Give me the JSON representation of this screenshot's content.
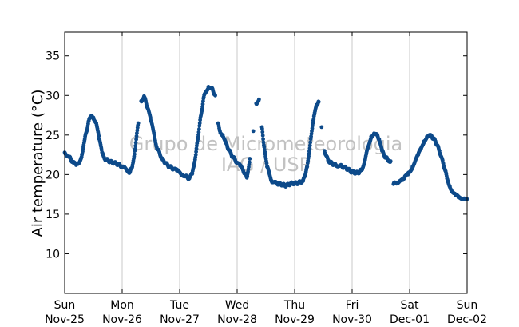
{
  "chart_data": {
    "type": "scatter",
    "ylabel": "Air temperature (°C)",
    "xlabel": "",
    "watermark": [
      "Grupo de Micrometeorologia",
      "IAG / USP"
    ],
    "ylim": [
      5,
      38
    ],
    "xlim": [
      0,
      7
    ],
    "yticks": [
      10,
      15,
      20,
      25,
      30,
      35
    ],
    "xticks": [
      {
        "day": "Sun",
        "date": "Nov-25",
        "x": 0
      },
      {
        "day": "Mon",
        "date": "Nov-26",
        "x": 1
      },
      {
        "day": "Tue",
        "date": "Nov-27",
        "x": 2
      },
      {
        "day": "Wed",
        "date": "Nov-28",
        "x": 3
      },
      {
        "day": "Thu",
        "date": "Nov-29",
        "x": 4
      },
      {
        "day": "Fri",
        "date": "Nov-30",
        "x": 5
      },
      {
        "day": "Sat",
        "date": "Dec-01",
        "x": 6
      },
      {
        "day": "Sun",
        "date": "Dec-02",
        "x": 7
      }
    ],
    "grid": "vertical",
    "marker_color": "#0d4a8a",
    "series": [
      {
        "x": [
          0.0,
          0.08,
          0.15,
          0.2,
          0.25,
          0.3,
          0.35,
          0.42,
          0.47,
          0.5,
          0.55,
          0.6,
          0.65,
          0.7,
          0.8,
          0.9,
          1.0,
          1.08,
          1.13,
          1.17,
          1.22,
          1.28,
          1.33,
          1.38,
          1.45,
          1.5,
          1.55,
          1.6,
          1.7,
          1.8,
          1.9,
          1.95,
          2.0,
          2.05,
          2.1,
          2.17,
          2.22,
          2.28,
          2.35,
          2.42,
          2.5,
          2.55,
          2.62,
          2.67,
          2.7,
          2.75,
          2.8,
          2.9,
          3.0,
          3.05,
          3.1,
          3.17,
          3.22,
          3.28,
          3.33,
          3.38,
          3.43,
          3.47,
          3.52,
          3.6,
          3.68,
          3.75,
          3.85,
          3.95,
          4.05,
          4.15,
          4.22,
          4.28,
          4.33,
          4.38,
          4.42,
          4.47,
          4.52,
          4.58,
          4.65,
          4.72,
          4.8,
          4.9,
          5.0,
          5.1,
          5.17,
          5.22,
          5.28,
          5.33,
          5.38,
          5.43,
          5.47,
          5.52,
          5.58,
          5.62,
          5.67,
          5.72,
          5.78,
          5.83,
          5.88,
          5.92,
          5.97,
          6.0,
          6.05,
          6.1,
          6.15,
          6.2,
          6.25,
          6.3,
          6.38,
          6.45,
          6.52,
          6.58,
          6.62,
          6.65,
          6.7,
          6.75,
          6.8,
          6.85,
          6.9,
          6.95,
          7.0
        ],
        "y": [
          22.8,
          22.2,
          21.5,
          21.2,
          21.5,
          22.5,
          24.5,
          26.8,
          27.4,
          27.2,
          26.5,
          24.5,
          22.8,
          22.0,
          21.6,
          21.4,
          21.0,
          20.6,
          20.3,
          20.8,
          23.0,
          26.5,
          29.3,
          29.9,
          28.3,
          26.8,
          25.3,
          23.5,
          21.9,
          21.1,
          20.7,
          20.5,
          20.3,
          20.0,
          19.8,
          19.5,
          20.1,
          22.5,
          26.5,
          29.8,
          31.1,
          31.0,
          30.0,
          26.5,
          25.5,
          25.0,
          24.0,
          22.5,
          21.5,
          21.1,
          20.6,
          19.6,
          22.0,
          25.5,
          29.0,
          29.5,
          26.0,
          23.5,
          21.0,
          19.2,
          18.9,
          18.8,
          18.6,
          18.9,
          18.9,
          19.2,
          21.0,
          24.5,
          27.0,
          28.8,
          29.2,
          26.0,
          23.0,
          21.8,
          21.4,
          21.2,
          21.1,
          20.8,
          20.3,
          20.2,
          20.6,
          21.8,
          23.5,
          24.8,
          25.2,
          25.0,
          24.5,
          23.0,
          22.2,
          21.9,
          21.7,
          18.8,
          19.0,
          19.2,
          19.3,
          19.8,
          20.0,
          20.3,
          21.0,
          21.8,
          22.5,
          23.3,
          24.2,
          24.8,
          24.9,
          24.2,
          23.0,
          21.5,
          20.5,
          19.5,
          18.5,
          17.8,
          17.4,
          17.1,
          17.0,
          17.0,
          16.9
        ]
      }
    ]
  }
}
